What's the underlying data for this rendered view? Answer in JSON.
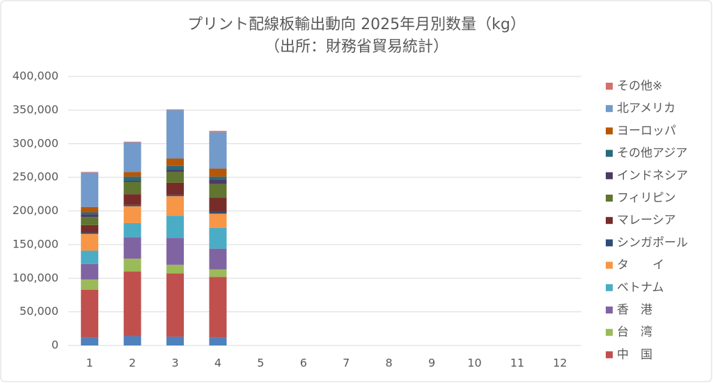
{
  "chart_data": {
    "type": "stacked_bar",
    "title": "プリント配線板輸出動向 2025年月別数量（kg）",
    "subtitle": "（出所：財務省貿易統計）",
    "categories": [
      "1",
      "2",
      "3",
      "4",
      "5",
      "6",
      "7",
      "8",
      "9",
      "10",
      "11",
      "12"
    ],
    "ylim": [
      0,
      400000
    ],
    "yticks": [
      0,
      {
        "value": 50000,
        "label": "50,000"
      },
      {
        "value": 100000,
        "label": "100,000"
      },
      {
        "value": 150000,
        "label": "150,000"
      },
      {
        "value": 200000,
        "label": "200,000"
      },
      {
        "value": 250000,
        "label": "250,000"
      },
      {
        "value": 300000,
        "label": "300,000"
      },
      {
        "value": 350000,
        "label": "350,000"
      },
      {
        "value": 400000,
        "label": "400,000"
      }
    ],
    "grid": true,
    "legend": "right",
    "series": [
      {
        "name": null,
        "color": "#4f81bd",
        "values": [
          12000,
          14000,
          13000,
          12000,
          null,
          null,
          null,
          null,
          null,
          null,
          null,
          null
        ]
      },
      {
        "name": "中　国",
        "color": "#c0504d",
        "values": [
          71000,
          96000,
          94000,
          90000,
          null,
          null,
          null,
          null,
          null,
          null,
          null,
          null
        ]
      },
      {
        "name": "台　湾",
        "color": "#9bbb59",
        "values": [
          15000,
          19000,
          13000,
          11000,
          null,
          null,
          null,
          null,
          null,
          null,
          null,
          null
        ]
      },
      {
        "name": "香　港",
        "color": "#8064a2",
        "values": [
          23000,
          32000,
          40000,
          31000,
          null,
          null,
          null,
          null,
          null,
          null,
          null,
          null
        ]
      },
      {
        "name": "ベトナム",
        "color": "#4bacc6",
        "values": [
          20000,
          21000,
          33000,
          31000,
          null,
          null,
          null,
          null,
          null,
          null,
          null,
          null
        ]
      },
      {
        "name": "タ　　イ",
        "color": "#f79646",
        "values": [
          25000,
          25000,
          29000,
          21000,
          null,
          null,
          null,
          null,
          null,
          null,
          null,
          null
        ]
      },
      {
        "name": "シンガポール",
        "color": "#2c4d75",
        "values": [
          2000,
          2000,
          2000,
          3000,
          null,
          null,
          null,
          null,
          null,
          null,
          null,
          null
        ]
      },
      {
        "name": "マレーシア",
        "color": "#772c2a",
        "values": [
          11000,
          16000,
          18000,
          21000,
          null,
          null,
          null,
          null,
          null,
          null,
          null,
          null
        ]
      },
      {
        "name": "フィリピン",
        "color": "#5f7530",
        "values": [
          12000,
          18000,
          16000,
          20000,
          null,
          null,
          null,
          null,
          null,
          null,
          null,
          null
        ]
      },
      {
        "name": "インドネシア",
        "color": "#4d3b62",
        "values": [
          4000,
          2000,
          3000,
          6000,
          null,
          null,
          null,
          null,
          null,
          null,
          null,
          null
        ]
      },
      {
        "name": "その他アジア",
        "color": "#276a7c",
        "values": [
          3000,
          6000,
          6000,
          5000,
          null,
          null,
          null,
          null,
          null,
          null,
          null,
          null
        ]
      },
      {
        "name": "ヨーロッパ",
        "color": "#b65708",
        "values": [
          8000,
          7000,
          11000,
          12000,
          null,
          null,
          null,
          null,
          null,
          null,
          null,
          null
        ]
      },
      {
        "name": "北アメリカ",
        "color": "#729aca",
        "values": [
          51000,
          44000,
          72000,
          54000,
          null,
          null,
          null,
          null,
          null,
          null,
          null,
          null
        ]
      },
      {
        "name": "その他※",
        "color": "#d46f6c",
        "values": [
          1000,
          1000,
          1000,
          2000,
          null,
          null,
          null,
          null,
          null,
          null,
          null,
          null
        ]
      }
    ]
  }
}
